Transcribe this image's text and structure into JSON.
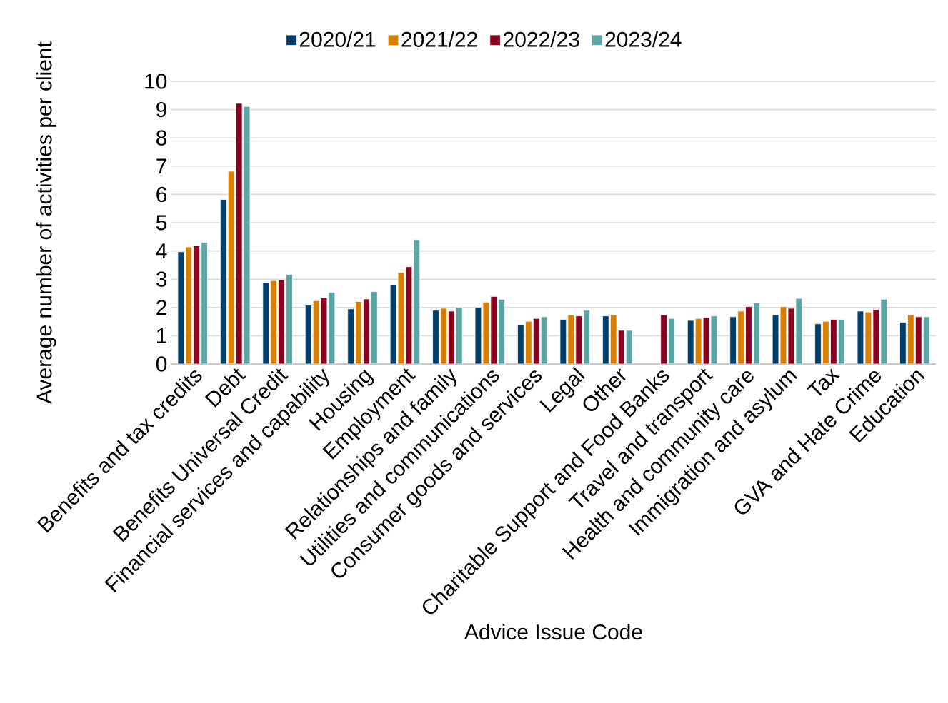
{
  "chart_data": {
    "type": "bar",
    "xlabel": "Advice Issue Code",
    "ylabel": "Average number of activities per client",
    "categories": [
      "Benefits and tax credits",
      "Debt",
      "Benefits Universal Credit",
      "Financial services and capability",
      "Housing",
      "Employment",
      "Relationships and family",
      "Utilities and communications",
      "Consumer goods and services",
      "Legal",
      "Other",
      "Charitable Support and Food Banks",
      "Travel and transport",
      "Health and community care",
      "Immigration and asylum",
      "Tax",
      "GVA and Hate Crime",
      "Education"
    ],
    "series": [
      {
        "name": "2020/21",
        "color": "#013f6b",
        "values": [
          3.97,
          5.82,
          2.88,
          2.08,
          1.95,
          2.79,
          1.9,
          2.0,
          1.38,
          1.58,
          1.7,
          null,
          1.54,
          1.67,
          1.74,
          1.42,
          1.87,
          1.48
        ]
      },
      {
        "name": "2021/22",
        "color": "#d87f00",
        "values": [
          4.14,
          6.82,
          2.95,
          2.24,
          2.21,
          3.24,
          1.97,
          2.19,
          1.51,
          1.74,
          1.74,
          null,
          1.61,
          1.87,
          2.03,
          1.51,
          1.84,
          1.74
        ]
      },
      {
        "name": "2022/23",
        "color": "#8a001e",
        "values": [
          4.18,
          9.22,
          2.98,
          2.34,
          2.3,
          3.44,
          1.87,
          2.39,
          1.61,
          1.7,
          1.19,
          1.74,
          1.65,
          2.03,
          1.97,
          1.58,
          1.93,
          1.67
        ]
      },
      {
        "name": "2023/24",
        "color": "#5ba5a5",
        "values": [
          4.3,
          9.11,
          3.17,
          2.53,
          2.56,
          4.4,
          2.0,
          2.29,
          1.67,
          1.9,
          1.19,
          1.61,
          1.7,
          2.16,
          2.32,
          1.58,
          2.29,
          1.67
        ]
      }
    ],
    "ylim": [
      0,
      10
    ],
    "yticks": [
      0,
      1,
      2,
      3,
      4,
      5,
      6,
      7,
      8,
      9,
      10
    ],
    "grid": "y",
    "legend": "top"
  }
}
